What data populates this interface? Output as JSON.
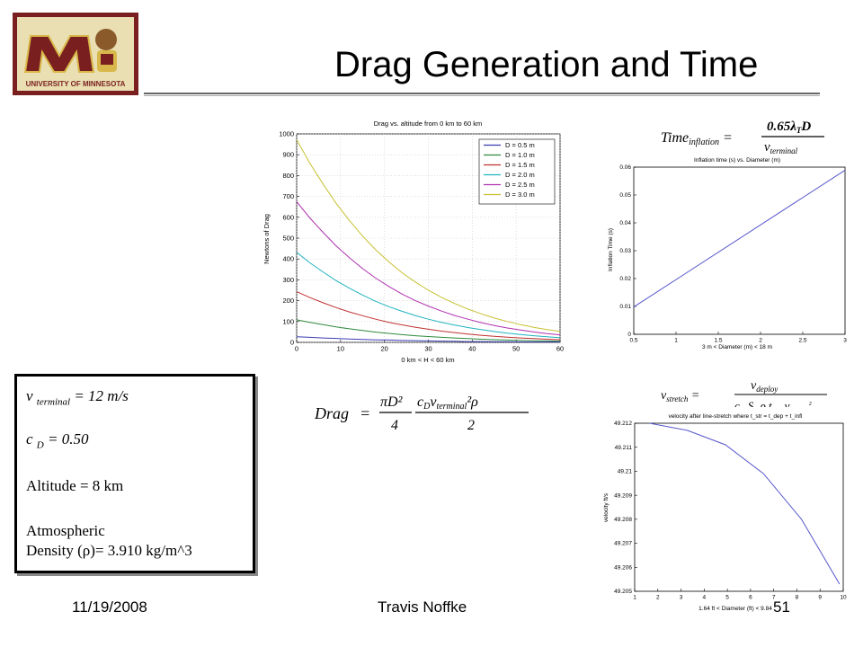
{
  "slide": {
    "title": "Drag Generation and Time",
    "logo_text": "UNIVERSITY OF MINNESOTA",
    "footer": {
      "date": "11/19/2008",
      "author": "Travis Noffke",
      "page": "51"
    }
  },
  "info": {
    "v_terminal": {
      "symbol": "v",
      "sub": "terminal",
      "value": "= 12 m/s"
    },
    "c_d": {
      "symbol": "c",
      "sub": "D",
      "value": "= 0.50"
    },
    "altitude": "Altitude = 8 km",
    "density_line1": "Atmospheric",
    "density_line2": "Density (ρ)= 3.910 kg/m^3"
  },
  "equations": {
    "inflation": {
      "lhs": "Time",
      "lhs_sub": "inflation",
      "num": "0.65λ",
      "num_sub": "T",
      "num_tail": "D",
      "den": "v",
      "den_sub": "terminal"
    },
    "drag": {
      "lhs": "Drag",
      "frac1_num": "πD²",
      "frac1_den": "4",
      "frac2_num": "c",
      "frac2_num_sub": "D",
      "frac2_num_v": "v",
      "frac2_num_vsub": "terminal",
      "frac2_num_tail": "²ρ",
      "frac2_den": "2"
    },
    "stretch": {
      "lhs": "v",
      "lhs_sub": "stretch",
      "num": "v",
      "num_sub": "deploy",
      "den": "c",
      "den_sub": "D",
      "den_mid": "S",
      "den_mid_sub": "o",
      "den_rho": "ρ t",
      "den_t_sub": "infl",
      "den_v": "v",
      "den_v_sub": "deploy",
      "den_tail": "²"
    }
  },
  "chart_data": [
    {
      "type": "line",
      "title": "Drag vs. altitude from 0 km to 60 km",
      "xlabel": "0 km < H < 60 km",
      "ylabel": "Newtons of Drag",
      "xlim": [
        0,
        60
      ],
      "ylim": [
        0,
        1000
      ],
      "xticks": [
        0,
        10,
        20,
        30,
        40,
        50,
        60
      ],
      "yticks": [
        0,
        100,
        200,
        300,
        400,
        500,
        600,
        700,
        800,
        900,
        1000
      ],
      "grid": true,
      "legend": "top-right",
      "x": [
        0,
        3,
        6,
        9,
        12,
        15,
        18,
        21,
        24,
        27,
        30,
        33,
        36,
        39,
        42,
        45,
        48,
        51,
        54,
        57,
        60
      ],
      "series": [
        {
          "name": "D = 0.5 m",
          "color": "#3c3cb4",
          "values": [
            27,
            24,
            21,
            19,
            16,
            14,
            12,
            11,
            9,
            8,
            7,
            6,
            5,
            4,
            4,
            3,
            3,
            2,
            2,
            2,
            2
          ]
        },
        {
          "name": "D = 1.0 m",
          "color": "#2e8b3a",
          "values": [
            108,
            96,
            85,
            74,
            65,
            57,
            49,
            43,
            37,
            32,
            28,
            24,
            21,
            18,
            15,
            13,
            11,
            9,
            8,
            7,
            6
          ]
        },
        {
          "name": "D = 1.5 m",
          "color": "#c03030",
          "values": [
            243,
            215,
            190,
            167,
            146,
            128,
            111,
            96,
            84,
            73,
            63,
            54,
            47,
            40,
            34,
            29,
            25,
            21,
            18,
            15,
            13
          ]
        },
        {
          "name": "D = 2.0 m",
          "color": "#1fb3c0",
          "values": [
            432,
            382,
            338,
            296,
            260,
            227,
            197,
            171,
            149,
            129,
            111,
            96,
            83,
            71,
            61,
            52,
            44,
            38,
            32,
            27,
            23
          ]
        },
        {
          "name": "D = 2.5 m",
          "color": "#b030b0",
          "values": [
            675,
            597,
            528,
            463,
            406,
            354,
            308,
            268,
            232,
            201,
            174,
            150,
            129,
            111,
            95,
            81,
            69,
            59,
            50,
            42,
            36
          ]
        },
        {
          "name": "D = 3.0 m",
          "color": "#c8c030",
          "values": [
            972,
            860,
            760,
            667,
            585,
            510,
            444,
            386,
            334,
            290,
            250,
            216,
            186,
            160,
            137,
            117,
            100,
            85,
            72,
            61,
            52
          ]
        }
      ]
    },
    {
      "type": "line",
      "title": "Inflation time (s) vs. Diameter (m)",
      "xlabel": "3 m < Diameter (m) < 18 m",
      "ylabel": "Inflation Time (s)",
      "xlim": [
        0.5,
        3
      ],
      "ylim": [
        0,
        0.06
      ],
      "xticks": [
        0.5,
        1,
        1.5,
        2,
        2.5,
        3
      ],
      "yticks": [
        0,
        0.01,
        0.02,
        0.03,
        0.04,
        0.05,
        0.06
      ],
      "grid": false,
      "x": [
        0.5,
        3
      ],
      "series": [
        {
          "color": "#5555cc",
          "values": [
            0.0098,
            0.0589
          ]
        }
      ]
    },
    {
      "type": "line",
      "title": "velocity after line-stretch where t_str = t_dep + t_infl",
      "xlabel": "1.64 ft < Diameter (ft) < 9.84",
      "ylabel": "velocity ft/s",
      "xlim": [
        1,
        10
      ],
      "ylim": [
        49.205,
        49.212
      ],
      "xticks": [
        1,
        2,
        3,
        4,
        5,
        6,
        7,
        8,
        9,
        10
      ],
      "yticks": [
        49.205,
        49.206,
        49.207,
        49.208,
        49.209,
        49.21,
        49.211,
        49.212
      ],
      "grid": false,
      "x": [
        1.64,
        3.28,
        4.92,
        6.56,
        8.2,
        9.84
      ],
      "series": [
        {
          "color": "#5555cc",
          "values": [
            49.212,
            49.2117,
            49.2111,
            49.2099,
            49.208,
            49.2053
          ]
        }
      ]
    }
  ]
}
